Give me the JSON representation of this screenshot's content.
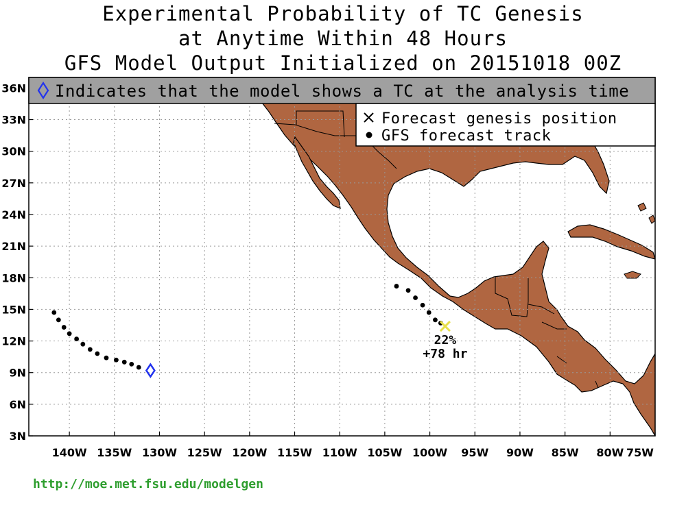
{
  "title": {
    "line1": "Experimental Probability of TC Genesis",
    "line2": "at Anytime Within 48 Hours",
    "line3": "GFS Model Output Initialized on 20151018 00Z"
  },
  "banner": {
    "icon": "diamond-icon",
    "text": "Indicates that the model shows a TC at the analysis time"
  },
  "legend": {
    "genesis_label": "Forecast genesis position",
    "track_label": "GFS forecast track"
  },
  "axes": {
    "lat_labels": [
      "36N",
      "33N",
      "30N",
      "27N",
      "24N",
      "21N",
      "18N",
      "15N",
      "12N",
      "9N",
      "6N",
      "3N"
    ],
    "lon_labels": [
      "140W",
      "135W",
      "130W",
      "125W",
      "120W",
      "115W",
      "110W",
      "105W",
      "100W",
      "95W",
      "90W",
      "85W",
      "80W",
      "75W"
    ],
    "lon_range": [
      -144.5,
      -75
    ],
    "lat_range": [
      3,
      37
    ]
  },
  "genesis": {
    "probability": "22%",
    "lead_time": "+78 hr",
    "lon": -98.3,
    "lat": 13.4,
    "color": "#e8e04a"
  },
  "tracks": {
    "east": [
      [
        -103.7,
        17.2
      ],
      [
        -102.4,
        16.8
      ],
      [
        -101.6,
        16.1
      ],
      [
        -100.8,
        15.4
      ],
      [
        -100.1,
        14.7
      ],
      [
        -99.4,
        14.0
      ],
      [
        -98.8,
        13.7
      ]
    ],
    "west": [
      [
        -141.7,
        14.7
      ],
      [
        -141.2,
        14.0
      ],
      [
        -140.6,
        13.3
      ],
      [
        -140.0,
        12.7
      ],
      [
        -139.2,
        12.2
      ],
      [
        -138.5,
        11.7
      ],
      [
        -137.7,
        11.2
      ],
      [
        -136.9,
        10.8
      ],
      [
        -135.9,
        10.4
      ],
      [
        -134.8,
        10.2
      ],
      [
        -133.9,
        10.0
      ],
      [
        -133.1,
        9.8
      ],
      [
        -132.3,
        9.5
      ]
    ]
  },
  "analysis_tc": {
    "lon": -131.0,
    "lat": 9.2,
    "color": "#2233ee"
  },
  "colors": {
    "land": "#b06641",
    "banner": "#a0a0a0"
  },
  "footer": {
    "url": "http://moe.met.fsu.edu/modelgen"
  }
}
